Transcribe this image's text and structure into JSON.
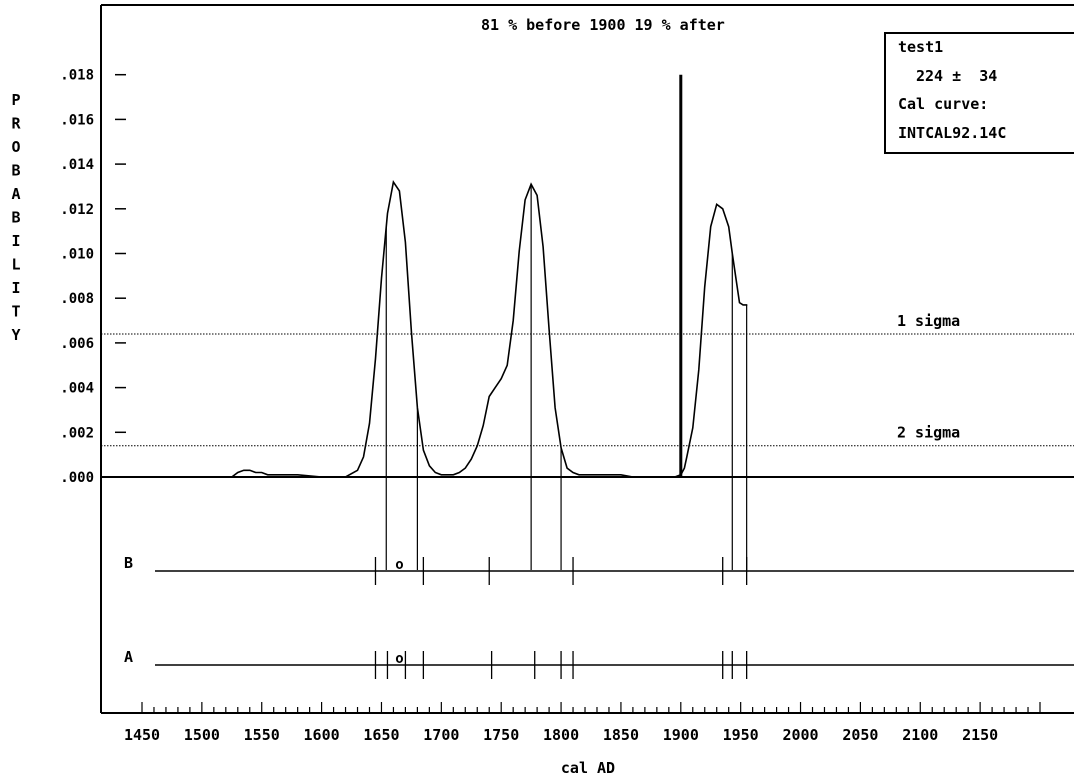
{
  "chart_data": {
    "type": "line",
    "title": "81 % before  1900  19 % after",
    "xlabel": "cal AD",
    "ylabel": "PROBABILITY",
    "xlim": [
      1450,
      2200
    ],
    "ylim": [
      0,
      0.02
    ],
    "x_ticks": [
      "1450",
      "1500",
      "1550",
      "1600",
      "1650",
      "1700",
      "1750",
      "1800",
      "1850",
      "1900",
      "1950",
      "2000",
      "2050",
      "2100",
      "2150"
    ],
    "y_ticks": [
      ".000",
      ".002",
      ".004",
      ".006",
      ".008",
      ".010",
      ".012",
      ".014",
      ".016",
      ".018"
    ],
    "series": [
      {
        "x": [
          1525,
          1530,
          1535,
          1540,
          1545,
          1550,
          1555,
          1560,
          1570,
          1580,
          1600,
          1620,
          1630,
          1635,
          1640,
          1645,
          1650,
          1655,
          1660,
          1665,
          1670,
          1675,
          1680,
          1685,
          1690,
          1695,
          1700,
          1705,
          1710,
          1715,
          1720,
          1725,
          1730,
          1735,
          1740,
          1745,
          1750,
          1755,
          1760,
          1765,
          1770,
          1775,
          1780,
          1785,
          1790,
          1795,
          1800,
          1805,
          1810,
          1815,
          1820,
          1825,
          1830,
          1835,
          1840,
          1850,
          1860,
          1870,
          1880,
          1890,
          1895,
          1900,
          1903,
          1905,
          1910,
          1915,
          1920,
          1925,
          1930,
          1935,
          1940,
          1943,
          1946,
          1949,
          1952,
          1954,
          1955,
          1955.5
        ],
        "y": [
          0,
          0.0002,
          0.0003,
          0.0003,
          0.0002,
          0.0002,
          0.0001,
          0.0001,
          0.0001,
          0.0001,
          0,
          0,
          0.0003,
          0.0009,
          0.0024,
          0.0053,
          0.0089,
          0.0118,
          0.0132,
          0.0128,
          0.0105,
          0.0065,
          0.0031,
          0.0012,
          0.0005,
          0.0002,
          0.0001,
          0.0001,
          0.0001,
          0.0002,
          0.0004,
          0.0008,
          0.0014,
          0.0023,
          0.0036,
          0.004,
          0.0044,
          0.005,
          0.007,
          0.0101,
          0.0124,
          0.0131,
          0.0126,
          0.0103,
          0.0066,
          0.0031,
          0.0013,
          0.0004,
          0.0002,
          0.0001,
          0.0001,
          0.0001,
          0.0001,
          0.0001,
          0.0001,
          0.0001,
          0,
          0,
          0,
          0,
          0,
          0.0001,
          0.0004,
          0.0009,
          0.0022,
          0.0048,
          0.0085,
          0.0112,
          0.0122,
          0.012,
          0.0112,
          0.01,
          0.0089,
          0.0078,
          0.0077,
          0.0077,
          0.0077,
          0.0077
        ],
        "color": "#000000"
      }
    ],
    "spike": {
      "x": 1900,
      "y": 0.018
    },
    "sigma_lines": [
      {
        "label": "1 sigma",
        "y": 0.0064
      },
      {
        "label": "2 sigma",
        "y": 0.0014
      }
    ],
    "one_sigma_ranges": [
      [
        1654,
        1680
      ],
      [
        1775,
        1800
      ],
      [
        1943,
        1955
      ]
    ],
    "range_rows": [
      {
        "label": "B",
        "ticks": [
          1645,
          1685,
          1740,
          1810,
          1935,
          1955
        ],
        "range_label_x": 1665,
        "range_label": "o"
      },
      {
        "label": "A",
        "ticks": [
          1645,
          1655,
          1670,
          1685,
          1742,
          1778,
          1800,
          1810,
          1935,
          1943,
          1955
        ],
        "range_label_x": 1665,
        "range_label": "o"
      }
    ],
    "info_box": {
      "name": "test1",
      "age": "224 ±  34",
      "cal_curve_label": "Cal curve:",
      "cal_curve": "INTCAL92.14C"
    }
  }
}
